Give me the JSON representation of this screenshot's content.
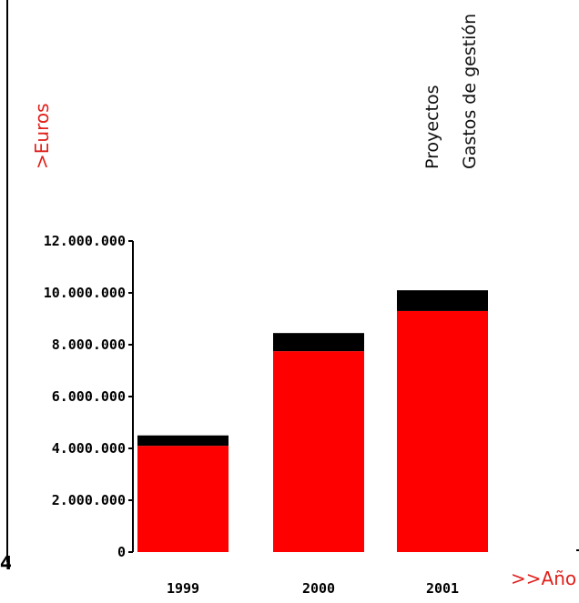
{
  "page_number": "4",
  "colors": {
    "proyectos": "#ff0000",
    "gastos": "#000000",
    "axis_title": "#e0201b"
  },
  "chart_data": {
    "type": "bar",
    "stacked": true,
    "title": "",
    "ylabel": ">Euros",
    "xlabel": ">>Año",
    "categories": [
      "1999",
      "2000",
      "2001"
    ],
    "series": [
      {
        "name": "Proyectos",
        "values": [
          4100000,
          7750000,
          9300000
        ]
      },
      {
        "name": "Gastos de gestión",
        "values": [
          400000,
          700000,
          800000
        ]
      }
    ],
    "ylim": [
      0,
      12000000
    ],
    "yticks": [
      "0",
      "2.000.000",
      "4.000.000",
      "6.000.000",
      "8.000.000",
      "10.000.000",
      "12.000.000"
    ],
    "legend_position": "top-right",
    "grid": false
  }
}
